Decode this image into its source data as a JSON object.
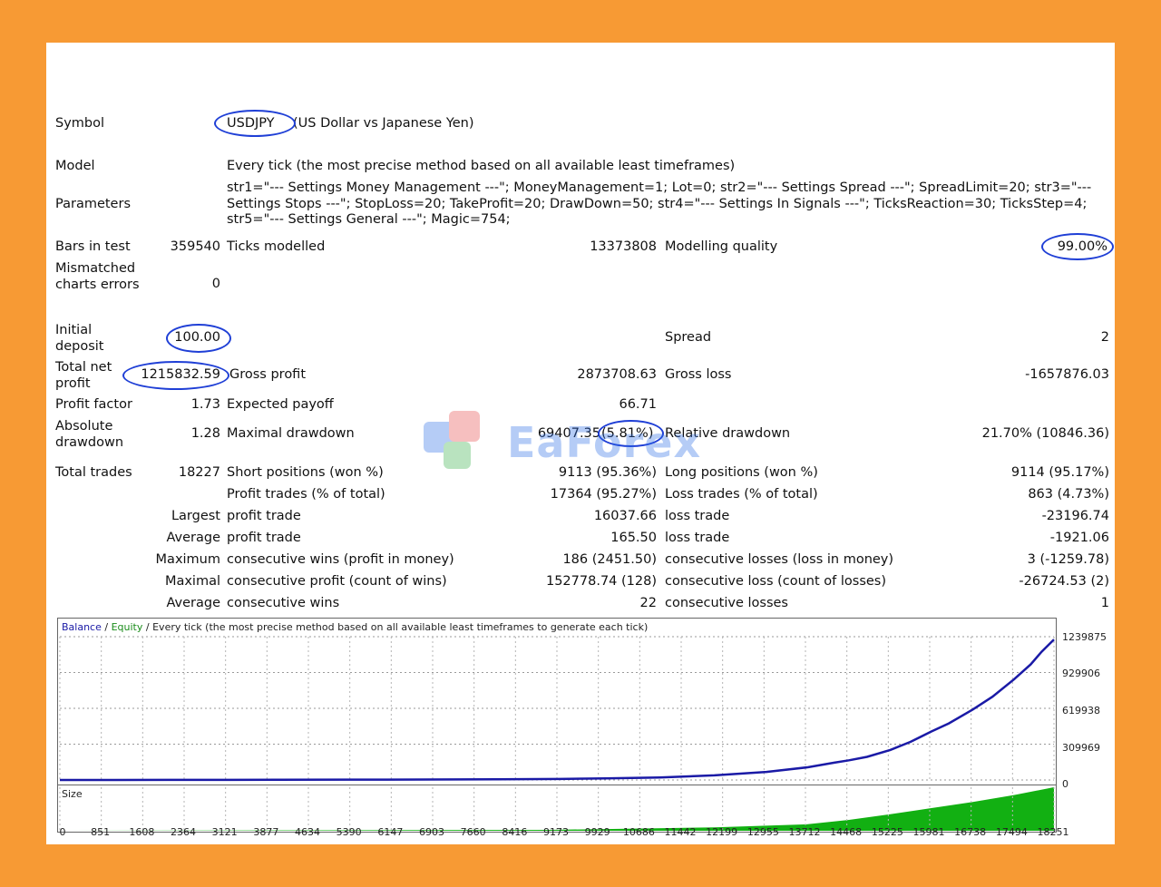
{
  "report": {
    "symbol_label": "Symbol",
    "symbol_code": "USDJPY",
    "symbol_desc": "(US Dollar vs Japanese Yen)",
    "model_label": "Model",
    "model_value": "Every tick (the most precise method based on all available least timeframes)",
    "parameters_label": "Parameters",
    "parameters_value": "str1=\"--- Settings Money Management ---\"; MoneyManagement=1; Lot=0; str2=\"--- Settings Spread ---\"; SpreadLimit=20; str3=\"--- Settings Stops ---\"; StopLoss=20; TakeProfit=20; DrawDown=50; str4=\"--- Settings In Signals ---\"; TicksReaction=30; TicksStep=4; str5=\"--- Settings General ---\"; Magic=754;",
    "bars_label": "Bars in test",
    "bars_value": "359540",
    "ticks_label": "Ticks modelled",
    "ticks_value": "13373808",
    "quality_label": "Modelling quality",
    "quality_value": "99.00%",
    "mismatched_label": "Mismatched charts errors",
    "mismatched_value": "0",
    "initial_label": "Initial deposit",
    "initial_value": "100.00",
    "spread_label": "Spread",
    "spread_value": "2",
    "netprofit_label": "Total net profit",
    "netprofit_value": "1215832.59",
    "grossprofit_label": "Gross profit",
    "grossprofit_value": "2873708.63",
    "grossloss_label": "Gross loss",
    "grossloss_value": "-1657876.03",
    "pf_label": "Profit factor",
    "pf_value": "1.73",
    "ep_label": "Expected payoff",
    "ep_value": "66.71",
    "absdd_label": "Absolute drawdown",
    "absdd_value": "1.28",
    "maxdd_label": "Maximal drawdown",
    "maxdd_value": "69407.35",
    "maxdd_pct": "(5.81%)",
    "reldd_label": "Relative drawdown",
    "reldd_value": "21.70% (10846.36)",
    "trades_label": "Total trades",
    "trades_value": "18227",
    "short_label": "Short positions (won %)",
    "short_value": "9113 (95.36%)",
    "long_label": "Long positions (won %)",
    "long_value": "9114 (95.17%)",
    "pt_label": "Profit trades (% of total)",
    "pt_value": "17364 (95.27%)",
    "lt_label": "Loss trades (% of total)",
    "lt_value": "863 (4.73%)",
    "largest_label": "Largest",
    "largest_pt_label": "profit trade",
    "largest_pt_value": "16037.66",
    "largest_lt_label": "loss trade",
    "largest_lt_value": "-23196.74",
    "average_label": "Average",
    "average_pt_label": "profit trade",
    "average_pt_value": "165.50",
    "average_lt_label": "loss trade",
    "average_lt_value": "-1921.06",
    "maximum_label": "Maximum",
    "max_cw_label": "consecutive wins (profit in money)",
    "max_cw_value": "186 (2451.50)",
    "max_cl_label": "consecutive losses (loss in money)",
    "max_cl_value": "3 (-1259.78)",
    "maximal_label": "Maximal",
    "mxl_cp_label": "consecutive profit (count of wins)",
    "mxl_cp_value": "152778.74 (128)",
    "mxl_cl_label": "consecutive loss (count of losses)",
    "mxl_cl_value": "-26724.53 (2)",
    "average2_label": "Average",
    "avg_cw_label": "consecutive wins",
    "avg_cw_value": "22",
    "avg_cl_label": "consecutive losses",
    "avg_cl_value": "1"
  },
  "watermark": {
    "text": "EaForex"
  },
  "chart_data": {
    "type": "line",
    "title_parts": [
      "Balance",
      "/",
      "Equity",
      "/",
      "Every tick (the most precise method based on all available least timeframes to generate each tick)"
    ],
    "colors": {
      "balance": "#1a1aa6",
      "equity": "#1a8c1a",
      "size": "#12b012"
    },
    "x_ticks": [
      "0",
      "851",
      "1608",
      "2364",
      "3121",
      "3877",
      "4634",
      "5390",
      "6147",
      "6903",
      "7660",
      "8416",
      "9173",
      "9929",
      "10686",
      "11442",
      "12199",
      "12955",
      "13712",
      "14468",
      "15225",
      "15981",
      "16738",
      "17494",
      "18251"
    ],
    "y_ticks": [
      "1239875",
      "929906",
      "619938",
      "309969",
      "0"
    ],
    "xlim": [
      0,
      18227
    ],
    "ylim": [
      0,
      1239875
    ],
    "series": [
      {
        "name": "Balance",
        "x": [
          0,
          2000,
          4000,
          6000,
          8000,
          9173,
          10000,
          11000,
          12000,
          12955,
          13712,
          14200,
          14468,
          14800,
          15225,
          15600,
          15981,
          16300,
          16738,
          17100,
          17494,
          17800,
          18000,
          18227
        ],
        "y": [
          100,
          400,
          1200,
          3000,
          6000,
          9000,
          14000,
          22000,
          40000,
          70000,
          110000,
          150000,
          170000,
          200000,
          260000,
          330000,
          420000,
          490000,
          610000,
          720000,
          870000,
          1000000,
          1110000,
          1215832
        ]
      }
    ],
    "size_panel": {
      "label": "Size",
      "x": [
        0,
        9000,
        12000,
        13712,
        14468,
        15225,
        15981,
        16738,
        17494,
        18227
      ],
      "y": [
        0,
        0.02,
        0.08,
        0.15,
        0.25,
        0.38,
        0.52,
        0.66,
        0.82,
        1.0
      ]
    }
  }
}
